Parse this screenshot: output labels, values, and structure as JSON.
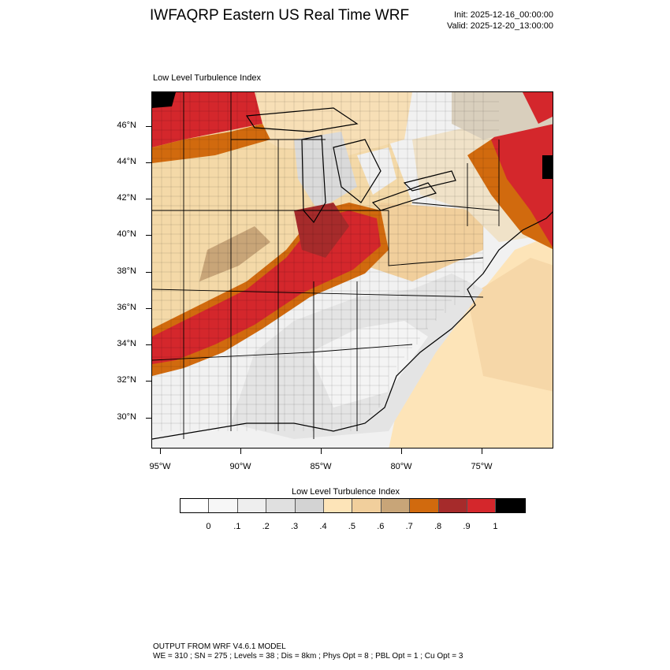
{
  "header": {
    "title": "IWFAQRP Eastern US Real Time WRF",
    "init": "Init: 2025-12-16_00:00:00",
    "valid": "Valid: 2025-12-20_13:00:00"
  },
  "plot": {
    "label": "Low Level Turbulence Index",
    "lat_ticks": [
      "46°N",
      "44°N",
      "42°N",
      "40°N",
      "38°N",
      "36°N",
      "34°N",
      "32°N",
      "30°N"
    ],
    "lon_ticks": [
      "95°W",
      "90°W",
      "85°W",
      "80°W",
      "75°W"
    ]
  },
  "colorbar": {
    "title": "Low Level Turbulence Index",
    "colors": [
      "#ffffff",
      "#f7f7f7",
      "#eeeeee",
      "#e0e0e0",
      "#d3d3d3",
      "#fde4b8",
      "#f1cf9c",
      "#c8a578",
      "#d16a0e",
      "#a62b2b",
      "#d4272c",
      "#000000"
    ],
    "labels": [
      "0",
      ".1",
      ".2",
      ".3",
      ".4",
      ".5",
      ".6",
      ".7",
      ".8",
      ".9",
      "1"
    ]
  },
  "footer": {
    "line1": "OUTPUT FROM WRF V4.6.1 MODEL",
    "line2": "WE = 310 ; SN = 275 ; Levels = 38 ; Dis = 8km ; Phys Opt = 8 ; PBL Opt = 1 ; Cu Opt = 3"
  }
}
